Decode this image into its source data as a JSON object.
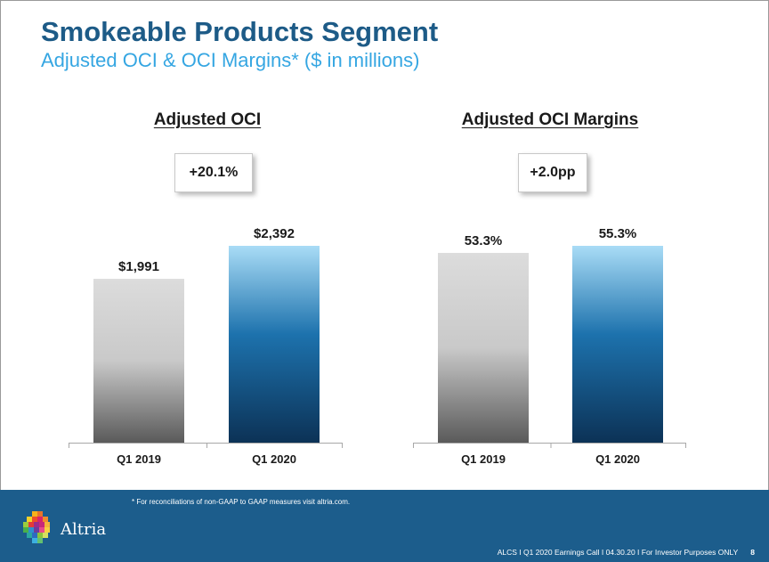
{
  "header": {
    "title": "Smokeable Products Segment",
    "subtitle": "Adjusted OCI & OCI Margins* ($ in millions)"
  },
  "chart_data": [
    {
      "type": "bar",
      "title": "Adjusted OCI",
      "change_label": "+20.1%",
      "categories": [
        "Q1 2019",
        "Q1 2020"
      ],
      "values": [
        1991,
        2392
      ],
      "value_labels": [
        "$1,991",
        "$2,392"
      ],
      "ylim": [
        0,
        2392
      ]
    },
    {
      "type": "bar",
      "title": "Adjusted OCI Margins",
      "change_label": "+2.0pp",
      "categories": [
        "Q1 2019",
        "Q1 2020"
      ],
      "values": [
        53.3,
        55.3
      ],
      "value_labels": [
        "53.3%",
        "55.3%"
      ],
      "ylim": [
        0,
        55.3
      ]
    }
  ],
  "footer": {
    "footnote": "* For reconciliations of non-GAAP to GAAP measures visit altria.com.",
    "logo_text": "Altria",
    "legal_line": "ALCS I Q1 2020 Earnings Call I 04.30.20 I For Investor Purposes ONLY",
    "page_number": "8"
  },
  "colors": {
    "title": "#1d5b87",
    "subtitle": "#35a6e2",
    "footer_bg": "#1c5d8c",
    "bar_prior_top": "#dcdcdc",
    "bar_prior_bottom": "#5a5a5a",
    "bar_current_top": "#a9dcf6",
    "bar_current_bottom": "#0c3256"
  }
}
